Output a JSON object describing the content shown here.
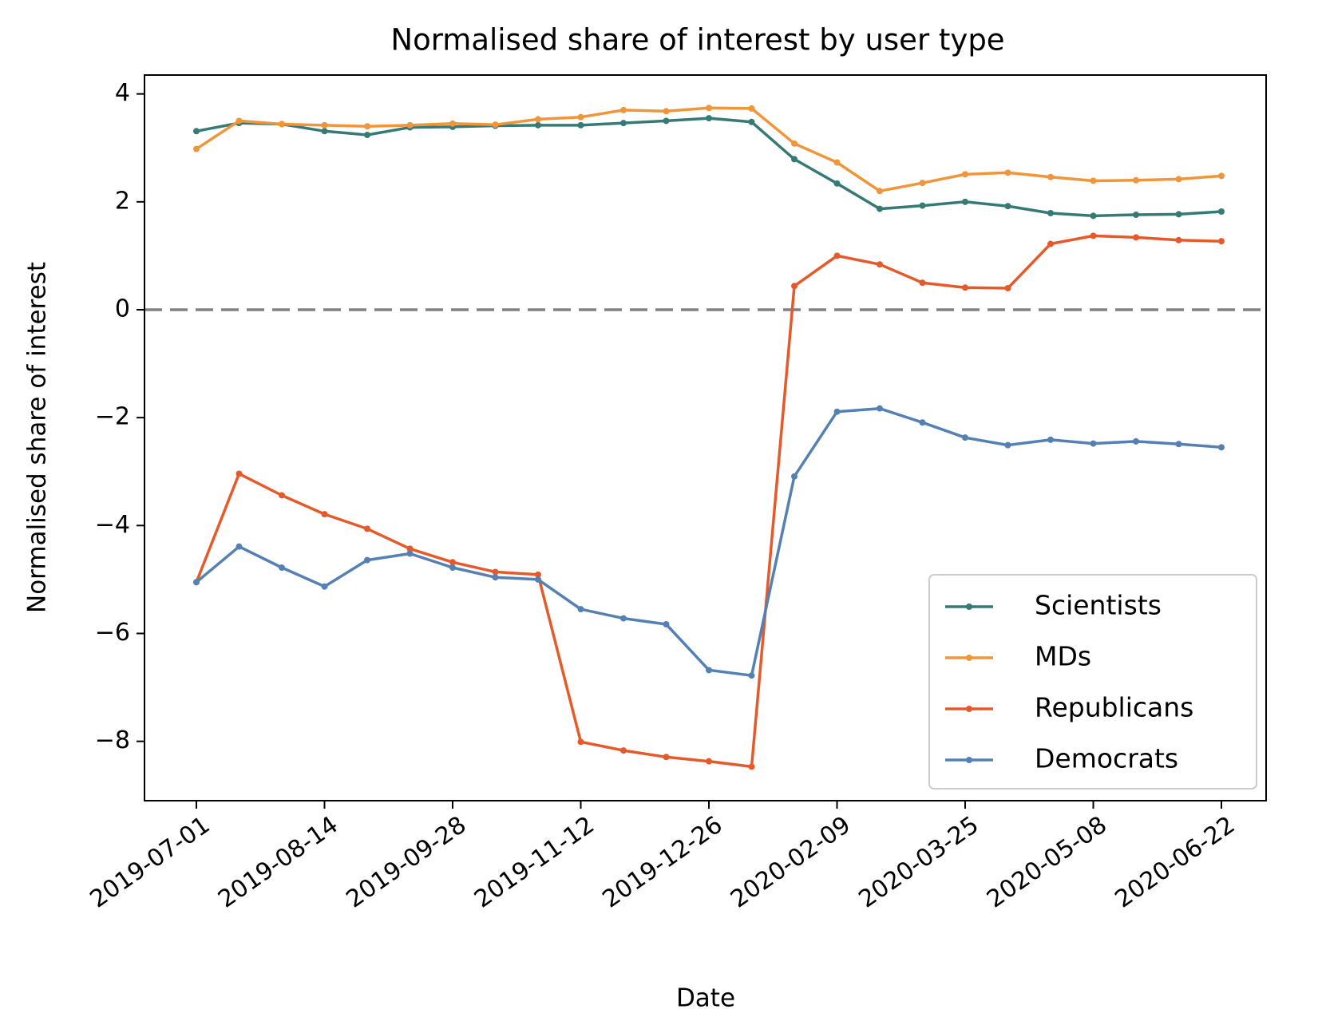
{
  "chart_data": {
    "type": "line",
    "title": "Normalised share of interest by user type",
    "xlabel": "Date",
    "ylabel": "Normalised share of interest",
    "x": [
      "2019-07-01",
      "2019-07-16",
      "2019-07-30",
      "2019-08-14",
      "2019-08-28",
      "2019-09-12",
      "2019-09-28",
      "2019-10-12",
      "2019-10-27",
      "2019-11-12",
      "2019-11-26",
      "2019-12-11",
      "2019-12-26",
      "2020-01-10",
      "2020-01-25",
      "2020-02-09",
      "2020-02-24",
      "2020-03-10",
      "2020-03-25",
      "2020-04-09",
      "2020-04-23",
      "2020-05-08",
      "2020-05-23",
      "2020-06-07",
      "2020-06-22"
    ],
    "xticks": [
      "2019-07-01",
      "2019-08-14",
      "2019-09-28",
      "2019-11-12",
      "2019-12-26",
      "2020-02-09",
      "2020-03-25",
      "2020-05-08",
      "2020-06-22"
    ],
    "ylim": [
      -9.1,
      4.35
    ],
    "yticks": [
      4,
      2,
      0,
      -2,
      -4,
      -6,
      -8
    ],
    "ytick_labels": [
      "4",
      "2",
      "0",
      "−2",
      "−4",
      "−6",
      "−8"
    ],
    "reference_line": {
      "y": 0,
      "style": "dashed",
      "color": "#808080"
    },
    "grid": false,
    "legend_position": "lower-right",
    "series": [
      {
        "name": "Scientists",
        "color": "#367a75",
        "values": [
          3.31,
          3.46,
          3.44,
          3.31,
          3.24,
          3.38,
          3.39,
          3.41,
          3.42,
          3.42,
          3.46,
          3.5,
          3.55,
          3.48,
          2.79,
          2.34,
          1.87,
          1.93,
          2.0,
          1.92,
          1.79,
          1.74,
          1.76,
          1.77,
          1.82
        ]
      },
      {
        "name": "MDs",
        "color": "#f0953a",
        "values": [
          2.98,
          3.5,
          3.44,
          3.42,
          3.4,
          3.42,
          3.45,
          3.43,
          3.53,
          3.57,
          3.7,
          3.68,
          3.74,
          3.73,
          3.08,
          2.73,
          2.2,
          2.35,
          2.51,
          2.54,
          2.46,
          2.39,
          2.4,
          2.42,
          2.48
        ]
      },
      {
        "name": "Republicans",
        "color": "#e55a2b",
        "values": [
          -5.05,
          -3.04,
          -3.44,
          -3.79,
          -4.06,
          -4.43,
          -4.68,
          -4.86,
          -4.91,
          -8.01,
          -8.17,
          -8.29,
          -8.37,
          -8.47,
          0.44,
          1.0,
          0.84,
          0.5,
          0.41,
          0.4,
          1.22,
          1.37,
          1.34,
          1.29,
          1.27
        ]
      },
      {
        "name": "Democrats",
        "color": "#5580b3",
        "values": [
          -5.05,
          -4.39,
          -4.78,
          -5.13,
          -4.64,
          -4.52,
          -4.78,
          -4.96,
          -5.0,
          -5.55,
          -5.72,
          -5.83,
          -6.68,
          -6.78,
          -3.09,
          -1.89,
          -1.83,
          -2.09,
          -2.37,
          -2.51,
          -2.41,
          -2.48,
          -2.44,
          -2.49,
          -2.55
        ]
      }
    ]
  }
}
